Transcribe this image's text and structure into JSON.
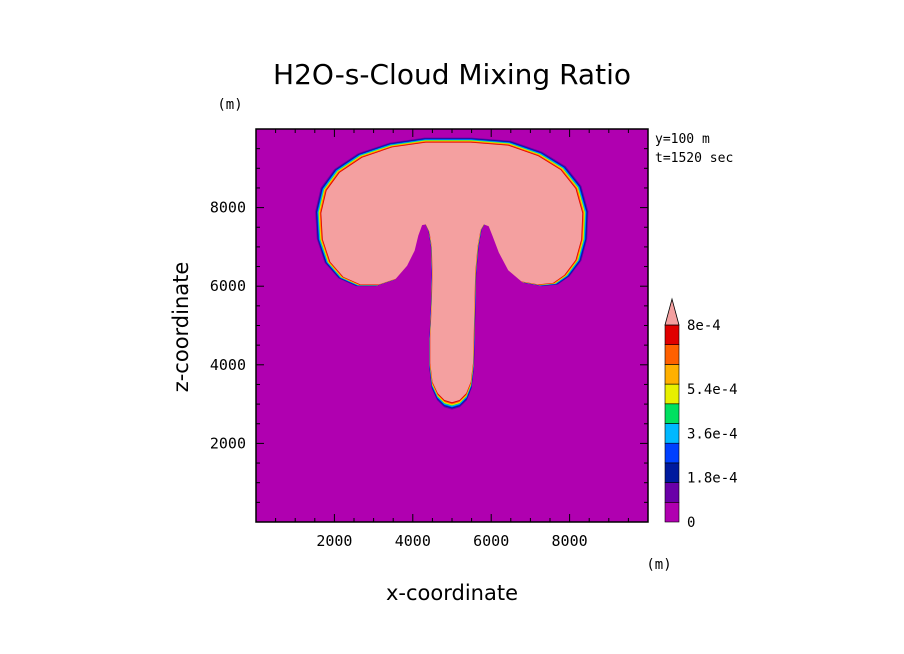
{
  "chart_data": {
    "type": "heatmap",
    "title": "H2O-s-Cloud Mixing Ratio",
    "xlabel": "x-coordinate",
    "ylabel": "z-coordinate",
    "x_unit": "(m)",
    "y_unit": "(m)",
    "annotations": [
      "y=100 m",
      "t=1520 sec"
    ],
    "xlim": [
      0,
      10000
    ],
    "ylim": [
      0,
      10000
    ],
    "x_ticks": [
      2000,
      4000,
      6000,
      8000
    ],
    "y_ticks": [
      2000,
      4000,
      6000,
      8000
    ],
    "x_tick_labels": [
      "2000",
      "4000",
      "6000",
      "8000"
    ],
    "y_tick_labels": [
      "2000",
      "4000",
      "6000",
      "8000"
    ],
    "colorbar": {
      "levels": [
        0,
        9e-05,
        0.00018,
        0.00027,
        0.00036,
        0.00045,
        0.00054,
        0.00063,
        0.00072,
        0.0008
      ],
      "labels": [
        {
          "value": 0,
          "text": "0"
        },
        {
          "value": 0.00018,
          "text": "1.8e-4"
        },
        {
          "value": 0.00036,
          "text": "3.6e-4"
        },
        {
          "value": 0.00054,
          "text": "5.4e-4"
        },
        {
          "value": 0.0008,
          "text": "8e-4"
        }
      ],
      "colors": [
        "#b000b0",
        "#6a00a8",
        "#001a9e",
        "#0040ff",
        "#00b8ff",
        "#00e060",
        "#e8f000",
        "#ffb000",
        "#ff6000",
        "#e00000",
        "#f4a0a0"
      ],
      "extend": "max"
    },
    "field": {
      "background_value": 0,
      "core_value": 0.00085,
      "features": [
        {
          "name": "anvil",
          "shape": "mushroom cap",
          "x_range": [
            1500,
            8500
          ],
          "z_range": [
            5950,
            9780
          ]
        },
        {
          "name": "updraft column",
          "shape": "stem",
          "x_range": [
            4250,
            5800
          ],
          "z_range": [
            2850,
            7800
          ]
        }
      ]
    }
  }
}
